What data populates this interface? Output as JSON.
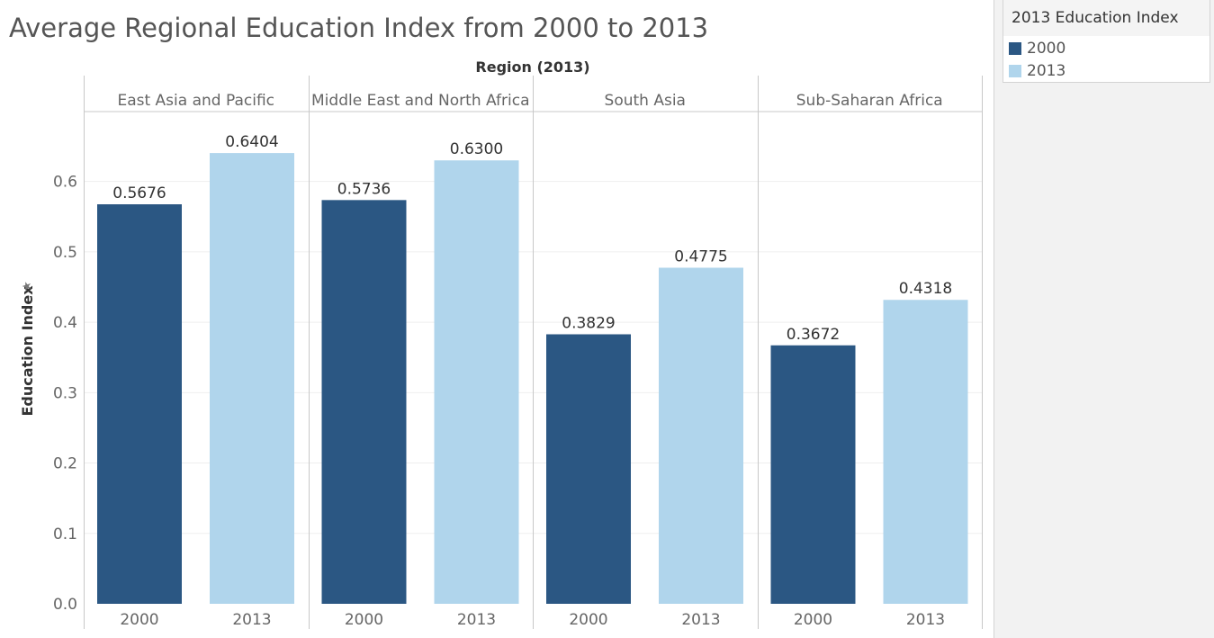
{
  "title": "Average Regional Education Index from 2000 to 2013",
  "legend": {
    "title": "2013 Education Index",
    "items": [
      {
        "label": "2000",
        "color": "#2b5783"
      },
      {
        "label": "2013",
        "color": "#b0d5ec"
      }
    ]
  },
  "pin_icon": "pin-icon",
  "chart_data": {
    "type": "bar",
    "title": "Average Regional Education Index from 2000 to 2013",
    "column_header": "Region (2013)",
    "ylabel": "Education Index",
    "xlabel": "",
    "ylim": [
      0,
      0.7
    ],
    "yticks": [
      "0.0",
      "0.1",
      "0.2",
      "0.3",
      "0.4",
      "0.5",
      "0.6"
    ],
    "grid": true,
    "legend_position": "top-right",
    "categories": [
      "2000",
      "2013"
    ],
    "panels": [
      {
        "region": "East Asia and Pacific",
        "values": [
          0.5676,
          0.6404
        ],
        "labels": [
          "0.5676",
          "0.6404"
        ]
      },
      {
        "region": "Middle East and North Africa",
        "values": [
          0.5736,
          0.63
        ],
        "labels": [
          "0.5736",
          "0.6300"
        ]
      },
      {
        "region": "South Asia",
        "values": [
          0.3829,
          0.4775
        ],
        "labels": [
          "0.3829",
          "0.4775"
        ]
      },
      {
        "region": "Sub-Saharan Africa",
        "values": [
          0.3672,
          0.4318
        ],
        "labels": [
          "0.3672",
          "0.4318"
        ]
      }
    ],
    "colors": [
      "#2b5783",
      "#b0d5ec"
    ]
  }
}
